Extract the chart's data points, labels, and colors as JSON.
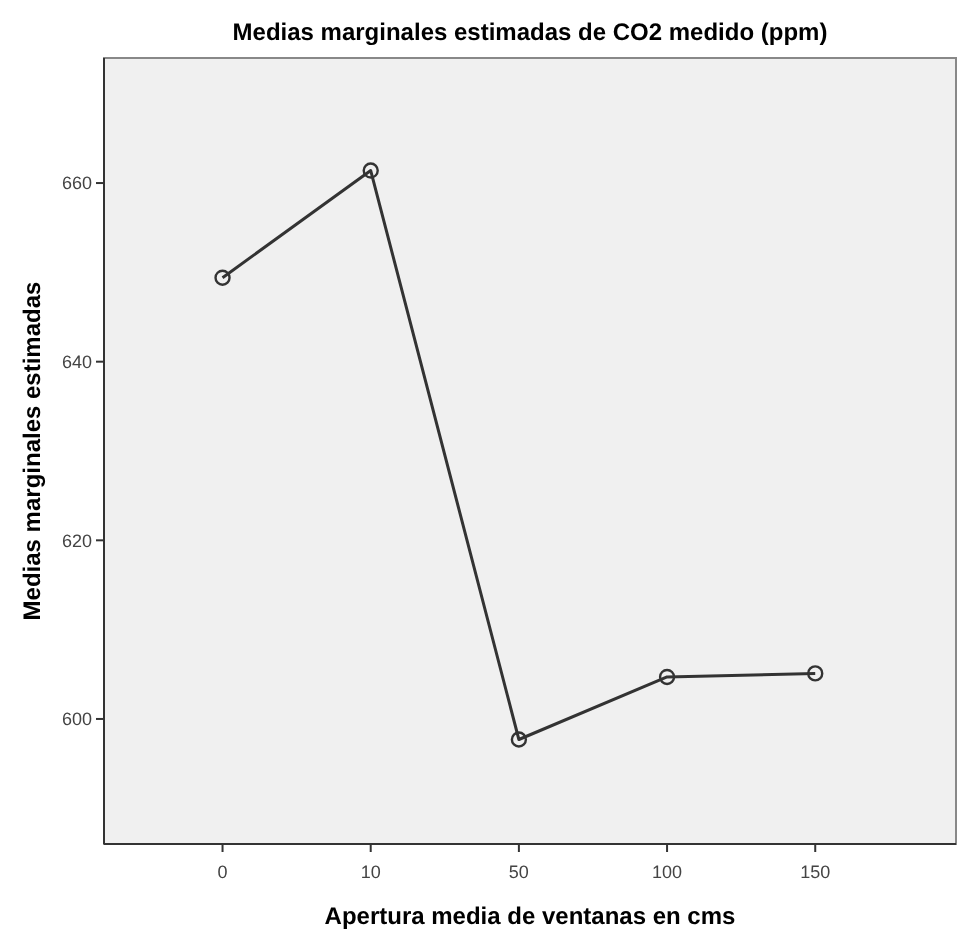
{
  "chart_data": {
    "type": "line",
    "title": "Medias marginales estimadas de CO2 medido (ppm)",
    "xlabel": "Apertura media de ventanas en cms",
    "ylabel": "Medias marginales estimadas",
    "categories": [
      "0",
      "10",
      "50",
      "100",
      "150"
    ],
    "series": [
      {
        "color": "#333333",
        "values": [
          649.4,
          661.4,
          597.7,
          604.7,
          605.1
        ]
      }
    ],
    "ylim": [
      586,
      674
    ],
    "yticks": [
      600,
      620,
      640,
      660
    ],
    "grid": false,
    "marker": "circle",
    "line_style": "solid"
  }
}
